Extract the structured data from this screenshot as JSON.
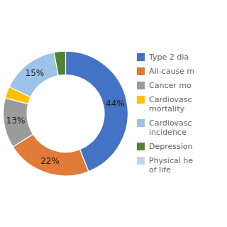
{
  "chart_data": {
    "type": "doughnut",
    "categories": [
      "Type 2 dia",
      "All-cause m",
      "Cancer mo",
      "Cardiovasc\nmortality",
      "Cardiovasc\nincidence",
      "Depression",
      "Physical he\nof life"
    ],
    "values": [
      44,
      22,
      13,
      3,
      15,
      3,
      null
    ],
    "value_labels": [
      "44%",
      "22%",
      "13%",
      null,
      "15%",
      null,
      null
    ],
    "colors": [
      "#4472C4",
      "#E07B39",
      "#9B9B9B",
      "#FFC000",
      "#9DC3E6",
      "#548235",
      "#BDD7EE"
    ],
    "legend": "right",
    "data_labels": true
  }
}
